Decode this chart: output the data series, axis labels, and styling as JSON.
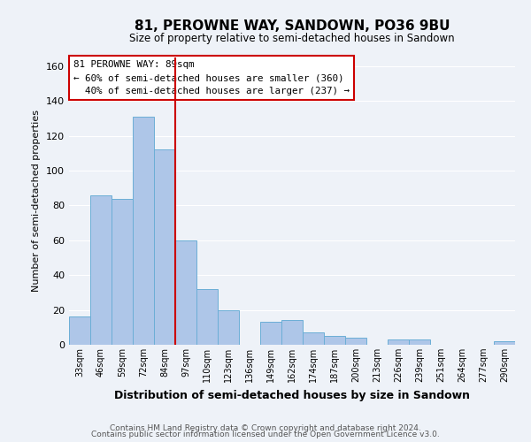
{
  "title": "81, PEROWNE WAY, SANDOWN, PO36 9BU",
  "subtitle": "Size of property relative to semi-detached houses in Sandown",
  "xlabel": "Distribution of semi-detached houses by size in Sandown",
  "ylabel": "Number of semi-detached properties",
  "bar_labels": [
    "33sqm",
    "46sqm",
    "59sqm",
    "72sqm",
    "84sqm",
    "97sqm",
    "110sqm",
    "123sqm",
    "136sqm",
    "149sqm",
    "162sqm",
    "174sqm",
    "187sqm",
    "200sqm",
    "213sqm",
    "226sqm",
    "239sqm",
    "251sqm",
    "264sqm",
    "277sqm",
    "290sqm"
  ],
  "bar_values": [
    16,
    86,
    84,
    131,
    112,
    60,
    32,
    20,
    0,
    13,
    14,
    7,
    5,
    4,
    0,
    3,
    3,
    0,
    0,
    0,
    2
  ],
  "bar_color": "#aec6e8",
  "bar_edge_color": "#6baed6",
  "vline_x": 4.5,
  "ylim": [
    0,
    165
  ],
  "yticks": [
    0,
    20,
    40,
    60,
    80,
    100,
    120,
    140,
    160
  ],
  "footer_line1": "Contains HM Land Registry data © Crown copyright and database right 2024.",
  "footer_line2": "Contains public sector information licensed under the Open Government Licence v3.0.",
  "annotation_box_color": "#cc0000",
  "vline_color": "#cc0000",
  "background_color": "#eef2f8",
  "grid_color": "#ffffff",
  "annotation_text_line1": "81 PEROWNE WAY: 89sqm",
  "annotation_text_line2": "← 60% of semi-detached houses are smaller (360)",
  "annotation_text_line3": "  40% of semi-detached houses are larger (237) →"
}
